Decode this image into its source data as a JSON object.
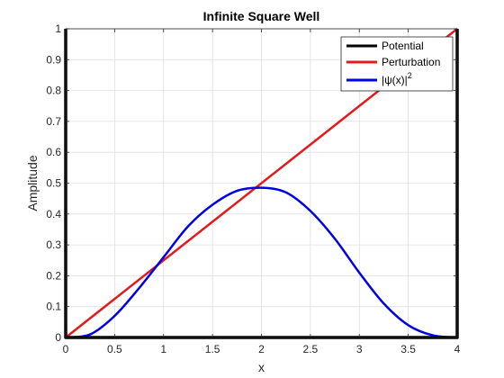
{
  "chart_data": {
    "type": "line",
    "title": "Infinite Square Well",
    "xlabel": "x",
    "ylabel": "Amplitude",
    "xlim": [
      0,
      4
    ],
    "ylim": [
      0,
      1
    ],
    "xticks": [
      "0",
      "0.5",
      "1",
      "1.5",
      "2",
      "2.5",
      "3",
      "3.5",
      "4"
    ],
    "yticks": [
      "0",
      "0.1",
      "0.2",
      "0.3",
      "0.4",
      "0.5",
      "0.6",
      "0.7",
      "0.8",
      "0.9",
      "1"
    ],
    "grid": true,
    "legend_position": "top-right",
    "series": [
      {
        "name": "Potential",
        "color": "#000000",
        "x": [
          0,
          0,
          4,
          4
        ],
        "y": [
          1,
          0,
          0,
          1
        ]
      },
      {
        "name": "Perturbation",
        "color": "#e31a1c",
        "x": [
          0,
          4
        ],
        "y": [
          0,
          1
        ]
      },
      {
        "name": "|ψ(x)|",
        "name_superscript": "2",
        "color": "#0000e6",
        "x": [
          0,
          0.25,
          0.5,
          0.75,
          1,
          1.25,
          1.5,
          1.75,
          2,
          2.25,
          2.5,
          2.75,
          3,
          3.25,
          3.5,
          3.75,
          4
        ],
        "y": [
          0,
          0.01,
          0.07,
          0.16,
          0.26,
          0.36,
          0.43,
          0.475,
          0.485,
          0.47,
          0.41,
          0.32,
          0.21,
          0.11,
          0.04,
          0.007,
          0
        ]
      }
    ]
  }
}
